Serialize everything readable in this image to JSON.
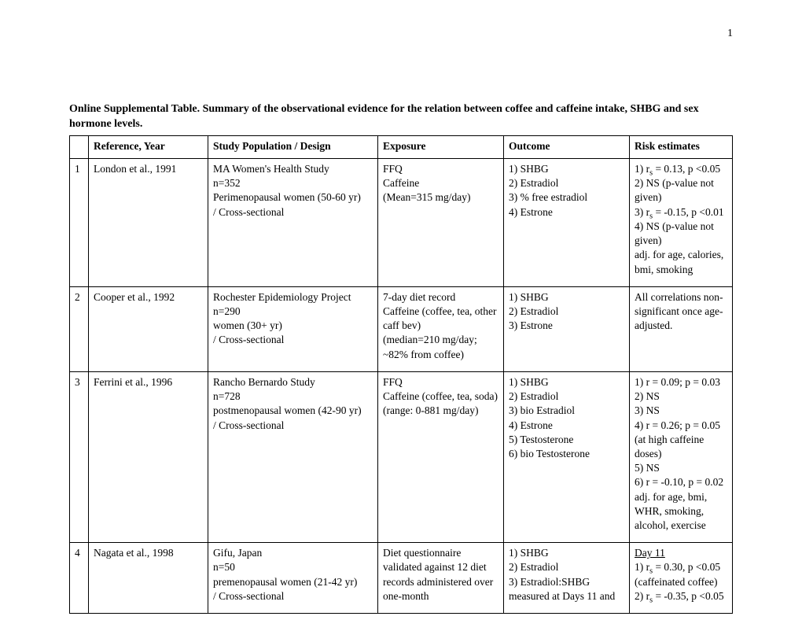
{
  "page_number": "1",
  "caption": "Online Supplemental Table. Summary of the observational evidence for the relation between coffee and caffeine intake, SHBG and sex hormone levels.",
  "columns": [
    "",
    "Reference, Year",
    "Study Population / Design",
    "Exposure",
    "Outcome",
    "Risk estimates"
  ],
  "rows": [
    {
      "n": "1",
      "ref": "London et al., 1991",
      "pop": "MA Women's Health Study\nn=352\nPerimenopausal women (50-60 yr)\n/ Cross-sectional",
      "exp": "FFQ\nCaffeine\n(Mean=315 mg/day)",
      "out": "1) SHBG\n2) Estradiol\n3) % free estradiol\n4) Estrone",
      "risk_html": "1) r<span class='sub'>s</span> = 0.13, p &lt;0.05<br>2) NS (p-value not given)<br>3) r<span class='sub'>s</span> = -0.15, p &lt;0.01<br>4) NS (p-value not given)<br>adj. for age, calories, bmi, smoking"
    },
    {
      "n": "2",
      "ref": "Cooper et al., 1992",
      "pop": "Rochester Epidemiology Project\nn=290\nwomen (30+ yr)\n/ Cross-sectional",
      "exp": "7-day diet record\nCaffeine (coffee, tea, other caff bev)\n(median=210 mg/day; ~82% from coffee)",
      "out": "1) SHBG\n2) Estradiol\n3) Estrone",
      "risk_html": "All correlations non-significant once age-adjusted."
    },
    {
      "n": "3",
      "ref": "Ferrini et al., 1996",
      "pop": "Rancho Bernardo Study\nn=728\npostmenopausal women (42-90 yr)\n/ Cross-sectional",
      "exp": "FFQ\nCaffeine (coffee, tea, soda)\n(range: 0-881 mg/day)",
      "out": "1) SHBG\n2) Estradiol\n3) bio Estradiol\n4) Estrone\n5) Testosterone\n6) bio Testosterone",
      "risk_html": "1)  r = 0.09; p = 0.03<br>2) NS<br>3) NS<br>4) r = 0.26; p = 0.05 (at high caffeine doses)<br>5) NS<br>6) r = -0.10, p = 0.02<br>adj. for age, bmi, WHR, smoking, alcohol, exercise"
    },
    {
      "n": "4",
      "ref": "Nagata et al., 1998",
      "pop": "Gifu, Japan\nn=50\npremenopausal women (21-42 yr)\n/ Cross-sectional",
      "exp": "Diet questionnaire validated against 12 diet records administered over one-month",
      "out": "1) SHBG\n2) Estradiol\n3) Estradiol:SHBG\nmeasured at Days 11 and",
      "risk_html": "<span class='u'>Day 11</span><br>1) r<span class='sub'>s</span> = 0.30, p &lt;0.05 (caffeinated coffee)<br>2) r<span class='sub'>s</span> = -0.35, p &lt;0.05"
    }
  ]
}
